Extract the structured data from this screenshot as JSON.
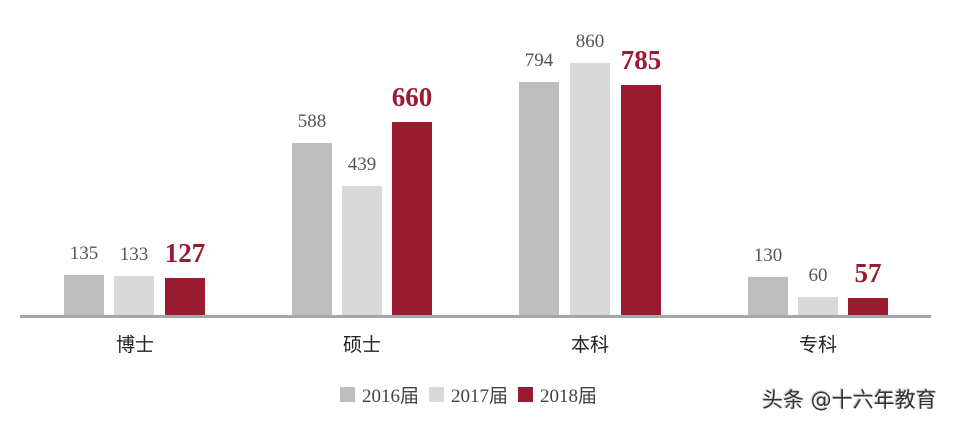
{
  "chart_data": {
    "type": "bar",
    "title": "",
    "xlabel": "",
    "ylabel": "",
    "categories": [
      "博士",
      "硕士",
      "本科",
      "专科"
    ],
    "series": [
      {
        "name": "2016届",
        "color": "#bdbdbd",
        "values": [
          135,
          588,
          794,
          130
        ]
      },
      {
        "name": "2017届",
        "color": "#d9d9d9",
        "values": [
          133,
          439,
          860,
          60
        ]
      },
      {
        "name": "2018届",
        "color": "#9b1c31",
        "values": [
          127,
          660,
          785,
          57
        ]
      }
    ],
    "ylim": [
      0,
      900
    ],
    "grid": false,
    "legend_position": "bottom",
    "data_labels": true,
    "highlight_series": "2018届"
  },
  "labels": {
    "values": [
      [
        "135",
        "133",
        "127"
      ],
      [
        "588",
        "439",
        "660"
      ],
      [
        "794",
        "860",
        "785"
      ],
      [
        "130",
        "60",
        "57"
      ]
    ]
  },
  "legend": [
    "2016届",
    "2017届",
    "2018届"
  ],
  "watermark": "头条 @十六年教育"
}
